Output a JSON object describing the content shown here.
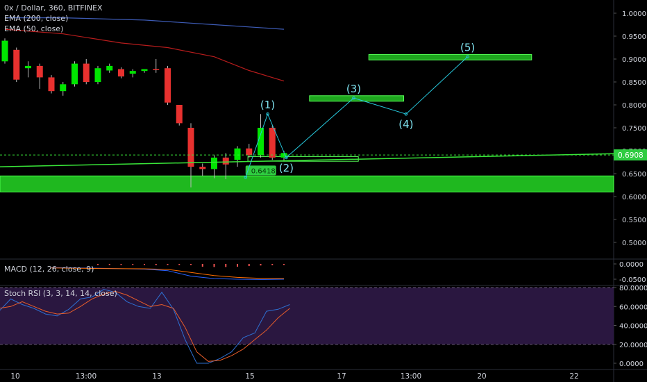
{
  "header": {
    "symbol_line": "0x / Dollar, 360, BITFINEX",
    "ema200_label": "EMA (200, close)",
    "ema50_label": "EMA (50, close)"
  },
  "macd": {
    "label": "MACD (12, 26, close, 9)"
  },
  "stoch": {
    "label": "Stoch RSI (3, 3, 14, 14, close)"
  },
  "colors": {
    "background": "#000000",
    "up_candle": "#00e600",
    "down_candle": "#e8312f",
    "support_zone": "#1fb81f",
    "ema200": "#3d5bb5",
    "ema50": "#b71c1c",
    "wave_path": "#26c6da",
    "wave_label": "#7fe3f0",
    "trendline": "#39e639",
    "price_tag": "#2ecc40",
    "stoch_bg": "#2a1740",
    "stoch_k": "#2e6fd1",
    "stoch_d": "#e85d2a"
  },
  "chart_data": [
    {
      "type": "candlestick",
      "title": "0x / Dollar, 360, BITFINEX",
      "ylim": [
        0.45,
        1.02
      ],
      "yticks": [
        "1.0000",
        "0.9500",
        "0.9000",
        "0.8500",
        "0.8000",
        "0.7500",
        "0.7000",
        "0.6500",
        "0.6000",
        "0.5500",
        "0.5000"
      ],
      "xticks": [
        "10",
        "13:00",
        "13",
        "15",
        "17",
        "13:00",
        "20",
        "22"
      ],
      "last_price_label": "0.6908",
      "hidden_price_label": "0.6418",
      "candles": [
        {
          "o": 0.895,
          "h": 0.945,
          "l": 0.89,
          "c": 0.94
        },
        {
          "o": 0.92,
          "h": 0.925,
          "l": 0.85,
          "c": 0.855
        },
        {
          "o": 0.88,
          "h": 0.895,
          "l": 0.86,
          "c": 0.885
        },
        {
          "o": 0.885,
          "h": 0.89,
          "l": 0.835,
          "c": 0.86
        },
        {
          "o": 0.86,
          "h": 0.865,
          "l": 0.825,
          "c": 0.83
        },
        {
          "o": 0.83,
          "h": 0.85,
          "l": 0.82,
          "c": 0.845
        },
        {
          "o": 0.845,
          "h": 0.895,
          "l": 0.84,
          "c": 0.89
        },
        {
          "o": 0.89,
          "h": 0.9,
          "l": 0.845,
          "c": 0.85
        },
        {
          "o": 0.85,
          "h": 0.885,
          "l": 0.845,
          "c": 0.88
        },
        {
          "o": 0.875,
          "h": 0.89,
          "l": 0.87,
          "c": 0.885
        },
        {
          "o": 0.878,
          "h": 0.882,
          "l": 0.858,
          "c": 0.862
        },
        {
          "o": 0.868,
          "h": 0.878,
          "l": 0.86,
          "c": 0.874
        },
        {
          "o": 0.874,
          "h": 0.878,
          "l": 0.87,
          "c": 0.878
        },
        {
          "o": 0.878,
          "h": 0.9,
          "l": 0.87,
          "c": 0.876
        },
        {
          "o": 0.88,
          "h": 0.885,
          "l": 0.8,
          "c": 0.805
        },
        {
          "o": 0.8,
          "h": 0.8,
          "l": 0.755,
          "c": 0.76
        },
        {
          "o": 0.75,
          "h": 0.76,
          "l": 0.62,
          "c": 0.665
        },
        {
          "o": 0.665,
          "h": 0.672,
          "l": 0.645,
          "c": 0.66
        },
        {
          "o": 0.66,
          "h": 0.69,
          "l": 0.64,
          "c": 0.685
        },
        {
          "o": 0.685,
          "h": 0.695,
          "l": 0.638,
          "c": 0.67
        },
        {
          "o": 0.68,
          "h": 0.71,
          "l": 0.665,
          "c": 0.705
        },
        {
          "o": 0.705,
          "h": 0.715,
          "l": 0.685,
          "c": 0.69
        },
        {
          "o": 0.69,
          "h": 0.78,
          "l": 0.685,
          "c": 0.75
        },
        {
          "o": 0.75,
          "h": 0.755,
          "l": 0.68,
          "c": 0.685
        },
        {
          "o": 0.685,
          "h": 0.7,
          "l": 0.677,
          "c": 0.695
        }
      ],
      "candle_x_start": 0,
      "candle_x_step": 1,
      "ema200": [
        [
          0,
          0.99
        ],
        [
          5,
          0.99
        ],
        [
          12,
          0.985
        ],
        [
          18,
          0.975
        ],
        [
          24,
          0.965
        ]
      ],
      "ema50": [
        [
          0,
          0.965
        ],
        [
          5,
          0.955
        ],
        [
          10,
          0.935
        ],
        [
          14,
          0.925
        ],
        [
          18,
          0.905
        ],
        [
          21,
          0.875
        ],
        [
          24,
          0.852
        ]
      ],
      "support_zone": [
        0.61,
        0.645
      ],
      "trendline": [
        [
          -0.5,
          0.665
        ],
        [
          52.5,
          0.6935
        ]
      ],
      "last_price": 0.6908,
      "hidden_price": 0.6418,
      "wave_path": [
        [
          20.7,
          0.642
        ],
        [
          22.6,
          0.78
        ],
        [
          24.2,
          0.685
        ],
        [
          30.0,
          0.815
        ],
        [
          34.5,
          0.78
        ],
        [
          39.8,
          0.905
        ]
      ],
      "wave_labels": [
        {
          "text": "(1)",
          "x": 22.6,
          "y": 0.78,
          "pos": "above"
        },
        {
          "text": "(2)",
          "x": 24.2,
          "y": 0.685,
          "pos": "below"
        },
        {
          "text": "(3)",
          "x": 30.0,
          "y": 0.815,
          "pos": "above"
        },
        {
          "text": "(4)",
          "x": 34.5,
          "y": 0.78,
          "pos": "below"
        },
        {
          "text": "(5)",
          "x": 39.8,
          "y": 0.905,
          "pos": "above"
        }
      ],
      "target_boxes": [
        {
          "x1": 26.2,
          "x2": 34.3,
          "y_low": 0.808,
          "y_high": 0.82
        },
        {
          "x1": 31.3,
          "x2": 45.3,
          "y_low": 0.898,
          "y_high": 0.91
        }
      ],
      "trigger_box": {
        "x1": 20.9,
        "x2": 30.4,
        "y_low": 0.677,
        "y_high": 0.687
      }
    },
    {
      "type": "histogram",
      "title": "MACD (12, 26, close, 9)",
      "ylim": [
        -0.075,
        0.005
      ],
      "yticks": [
        "0.0000",
        "-0.0500"
      ],
      "histogram_x": [
        8,
        9,
        10,
        11,
        12,
        13,
        14,
        15,
        16,
        17,
        18,
        19,
        20,
        21,
        22,
        23,
        24
      ],
      "histogram": [
        -0.003,
        -0.002,
        -0.002,
        -0.003,
        -0.002,
        -0.004,
        -0.003,
        -0.003,
        -0.003,
        -0.009,
        -0.01,
        -0.01,
        -0.009,
        -0.007,
        -0.005,
        -0.004,
        -0.003
      ],
      "macd_line": [
        [
          4,
          -0.012
        ],
        [
          8,
          -0.014
        ],
        [
          12,
          -0.017
        ],
        [
          14,
          -0.022
        ],
        [
          16,
          -0.04
        ],
        [
          18,
          -0.048
        ],
        [
          20,
          -0.05
        ],
        [
          22,
          -0.051
        ],
        [
          24,
          -0.05
        ]
      ],
      "signal_line": [
        [
          4,
          -0.013
        ],
        [
          8,
          -0.015
        ],
        [
          12,
          -0.016
        ],
        [
          14,
          -0.018
        ],
        [
          16,
          -0.028
        ],
        [
          18,
          -0.038
        ],
        [
          20,
          -0.044
        ],
        [
          22,
          -0.047
        ],
        [
          24,
          -0.048
        ]
      ]
    },
    {
      "type": "line",
      "title": "Stoch RSI (3, 3, 14, 14, close)",
      "ylim": [
        -5,
        85
      ],
      "yticks": [
        "80.0000",
        "60.0000",
        "40.0000",
        "20.0000",
        "0.0000"
      ],
      "bands": [
        20,
        80
      ],
      "series": [
        {
          "values": [
            [
              -0.5,
              55
            ],
            [
              0.5,
              68
            ],
            [
              1.5,
              62
            ],
            [
              2.5,
              58
            ],
            [
              3.5,
              52
            ],
            [
              4.5,
              50
            ],
            [
              5.5,
              57
            ],
            [
              6.5,
              68
            ],
            [
              7.5,
              70
            ],
            [
              8.5,
              78
            ],
            [
              9.5,
              75
            ],
            [
              10.5,
              65
            ],
            [
              11.5,
              60
            ],
            [
              12.5,
              58
            ],
            [
              13.5,
              75
            ],
            [
              14.5,
              57
            ],
            [
              15.5,
              25
            ],
            [
              16.5,
              0
            ],
            [
              17.5,
              0
            ],
            [
              18.5,
              5
            ],
            [
              19.5,
              12
            ],
            [
              20.5,
              27
            ],
            [
              21.5,
              32
            ],
            [
              22.5,
              55
            ],
            [
              23.5,
              57
            ],
            [
              24.5,
              62
            ]
          ]
        },
        {
          "values": [
            [
              -0.5,
              58
            ],
            [
              0.5,
              60
            ],
            [
              1.5,
              65
            ],
            [
              2.5,
              60
            ],
            [
              3.5,
              55
            ],
            [
              4.5,
              52
            ],
            [
              5.5,
              53
            ],
            [
              6.5,
              60
            ],
            [
              7.5,
              68
            ],
            [
              8.5,
              73
            ],
            [
              9.5,
              76
            ],
            [
              10.5,
              72
            ],
            [
              11.5,
              66
            ],
            [
              12.5,
              60
            ],
            [
              13.5,
              62
            ],
            [
              14.5,
              58
            ],
            [
              15.5,
              38
            ],
            [
              16.5,
              12
            ],
            [
              17.5,
              2
            ],
            [
              18.5,
              3
            ],
            [
              19.5,
              8
            ],
            [
              20.5,
              15
            ],
            [
              21.5,
              25
            ],
            [
              22.5,
              35
            ],
            [
              23.5,
              48
            ],
            [
              24.5,
              58
            ]
          ]
        }
      ]
    }
  ]
}
